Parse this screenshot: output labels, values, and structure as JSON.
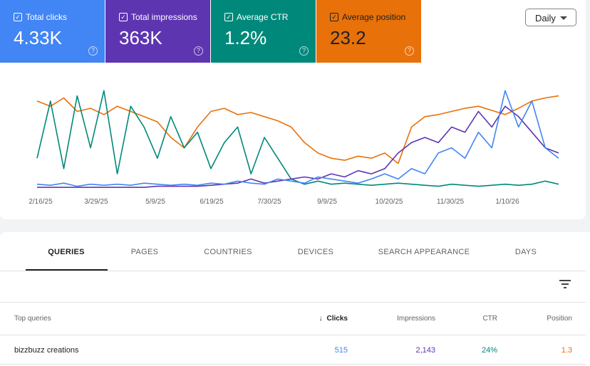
{
  "metrics": [
    {
      "label": "Total clicks",
      "value": "4.33K",
      "color": "#4285f4",
      "checked": true
    },
    {
      "label": "Total impressions",
      "value": "363K",
      "color": "#5e35b1",
      "checked": true
    },
    {
      "label": "Average CTR",
      "value": "1.2%",
      "color": "#00897b",
      "checked": true
    },
    {
      "label": "Average position",
      "value": "23.2",
      "color": "#e8710a",
      "checked": true
    }
  ],
  "granularity": "Daily",
  "chart_data": {
    "type": "line",
    "x_ticks": [
      "2/16/25",
      "3/29/25",
      "5/9/25",
      "6/19/25",
      "7/30/25",
      "9/9/25",
      "10/20/25",
      "11/30/25",
      "1/10/26"
    ],
    "y_scale": "relative 0-100 per series",
    "series": [
      {
        "name": "Average position",
        "color": "#e8710a",
        "values": [
          85,
          80,
          88,
          75,
          78,
          72,
          80,
          75,
          70,
          65,
          50,
          40,
          60,
          75,
          78,
          72,
          74,
          70,
          66,
          60,
          45,
          35,
          30,
          28,
          32,
          30,
          35,
          25,
          60,
          70,
          72,
          75,
          78,
          80,
          76,
          72,
          78,
          85,
          88,
          90
        ]
      },
      {
        "name": "Average CTR",
        "color": "#00897b",
        "values": [
          30,
          85,
          20,
          90,
          40,
          95,
          15,
          80,
          60,
          30,
          70,
          40,
          55,
          20,
          45,
          60,
          15,
          50,
          30,
          10,
          5,
          8,
          5,
          6,
          5,
          4,
          5,
          6,
          5,
          4,
          3,
          5,
          4,
          3,
          4,
          5,
          4,
          5,
          8,
          5
        ]
      },
      {
        "name": "Total impressions",
        "color": "#5e35b1",
        "values": [
          2,
          2,
          2,
          2,
          2,
          2,
          2,
          2,
          2,
          3,
          3,
          3,
          3,
          4,
          5,
          6,
          10,
          6,
          8,
          10,
          12,
          10,
          15,
          12,
          18,
          15,
          20,
          35,
          45,
          50,
          45,
          60,
          55,
          75,
          60,
          80,
          70,
          55,
          40,
          35
        ]
      },
      {
        "name": "Total clicks",
        "color": "#4285f4",
        "values": [
          5,
          4,
          6,
          3,
          5,
          4,
          5,
          4,
          6,
          5,
          4,
          5,
          4,
          6,
          5,
          8,
          6,
          5,
          10,
          8,
          6,
          12,
          10,
          8,
          6,
          10,
          15,
          10,
          20,
          15,
          35,
          40,
          30,
          55,
          40,
          95,
          60,
          85,
          40,
          30
        ]
      }
    ]
  },
  "tabs": [
    "QUERIES",
    "PAGES",
    "COUNTRIES",
    "DEVICES",
    "SEARCH APPEARANCE",
    "DAYS"
  ],
  "table": {
    "headers": {
      "query": "Top queries",
      "clicks": "Clicks",
      "impressions": "Impressions",
      "ctr": "CTR",
      "position": "Position"
    },
    "rows": [
      {
        "query": "bizzbuzz creations",
        "clicks": "515",
        "impressions": "2,143",
        "ctr": "24%",
        "position": "1.3"
      }
    ]
  }
}
